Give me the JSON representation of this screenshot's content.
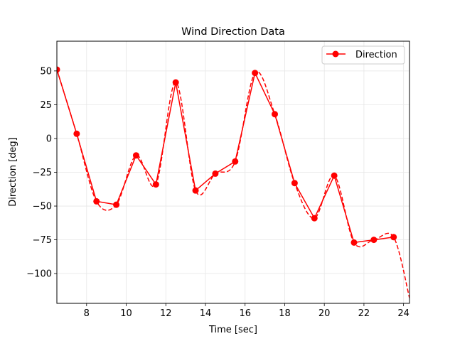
{
  "chart_data": {
    "type": "line",
    "title": "Wind Direction Data",
    "xlabel": "Time [sec]",
    "ylabel": "Direction [deg]",
    "xlim": [
      6.5,
      24.3
    ],
    "ylim": [
      -122,
      72
    ],
    "xticks": [
      8,
      10,
      12,
      14,
      16,
      18,
      20,
      22,
      24
    ],
    "yticks": [
      50,
      25,
      0,
      -25,
      -50,
      -75,
      -100
    ],
    "ytick_labels": [
      "50",
      "25",
      "0",
      "−25",
      "−50",
      "−75",
      "−100"
    ],
    "grid": true,
    "legend_position": "top-right",
    "series": [
      {
        "name": "Direction",
        "style": "solid-with-markers",
        "color": "#ff0000",
        "x": [
          6.5,
          7.5,
          8.5,
          9.5,
          10.5,
          11.5,
          12.5,
          13.5,
          14.5,
          15.5,
          16.5,
          17.5,
          18.5,
          19.5,
          20.5,
          21.5,
          22.5,
          23.5
        ],
        "y": [
          51,
          3.5,
          -46.5,
          -49,
          -12.5,
          -34,
          41.5,
          -38.5,
          -26,
          -17,
          48.5,
          18,
          -33,
          -59,
          -27.5,
          -77,
          -75,
          -73
        ]
      },
      {
        "name": "",
        "style": "dashed-smooth",
        "color": "#ff0000",
        "x": [
          6.5,
          7.5,
          8.5,
          9.5,
          10.5,
          11.5,
          12.5,
          13.5,
          14.5,
          15.5,
          16.5,
          17.5,
          18.5,
          19.5,
          20.5,
          21.5,
          22.5,
          23.5,
          24.3
        ],
        "y": [
          51,
          3.5,
          -46.5,
          -49,
          -12.5,
          -34,
          41.5,
          -38.5,
          -26,
          -17,
          48.5,
          18,
          -33,
          -59,
          -27.5,
          -77,
          -75,
          -73,
          -118
        ]
      }
    ]
  }
}
